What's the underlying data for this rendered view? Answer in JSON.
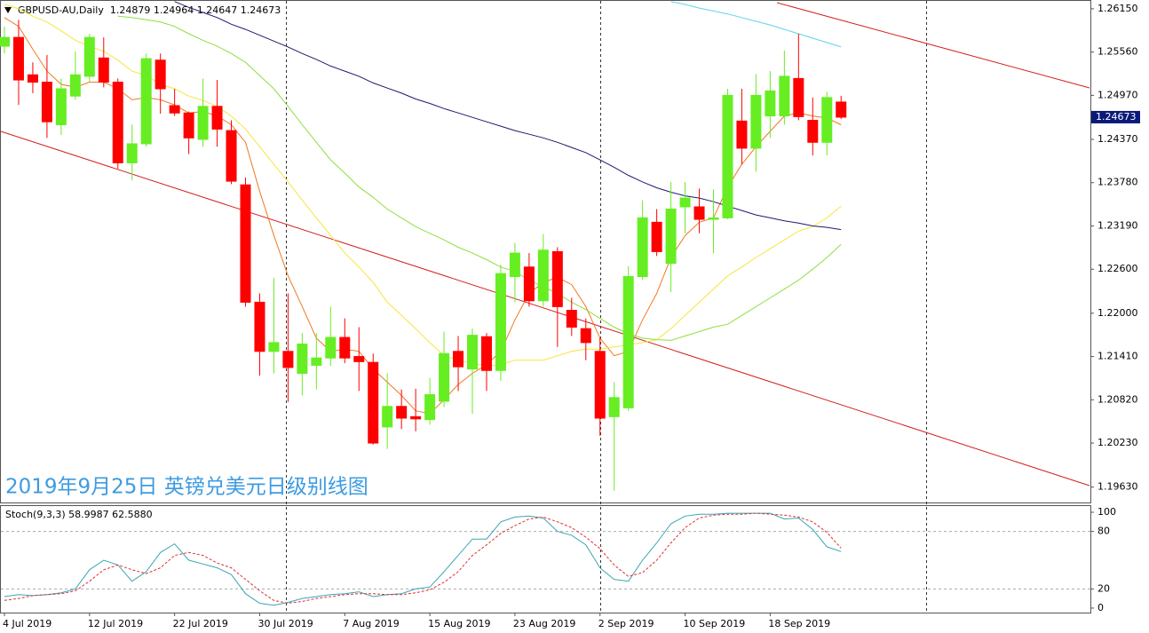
{
  "chart_data": [
    {
      "type": "candlestick",
      "title": "GBPUSD-AU,Daily  1.24879 1.24964 1.24647 1.24673",
      "annotation": "2019年9月25日 英镑兑美元日级别线图",
      "categories": [
        "4 Jul 2019",
        null,
        null,
        null,
        null,
        null,
        "12 Jul 2019",
        null,
        null,
        null,
        null,
        null,
        "22 Jul 2019",
        null,
        null,
        null,
        null,
        null,
        "30 Jul 2019",
        null,
        null,
        null,
        null,
        null,
        "7 Aug 2019",
        null,
        null,
        null,
        null,
        null,
        "15 Aug 2019",
        null,
        null,
        null,
        null,
        null,
        "23 Aug 2019",
        null,
        null,
        null,
        null,
        null,
        "2 Sep 2019",
        null,
        null,
        null,
        null,
        null,
        "10 Sep 2019",
        null,
        null,
        null,
        null,
        null,
        "18 Sep 2019",
        null,
        null,
        null,
        null,
        null
      ],
      "open": [
        1.2564,
        1.2576,
        1.2525,
        1.2515,
        1.2457,
        1.2496,
        1.2523,
        1.2548,
        1.2515,
        1.2405,
        1.2431,
        1.2545,
        1.2483,
        1.2473,
        1.2437,
        1.2482,
        1.2449,
        1.2375,
        1.2215,
        1.2148,
        1.2148,
        1.2118,
        1.2129,
        1.2139,
        1.2167,
        1.2141,
        1.2133,
        1.2045,
        1.2073,
        1.2059,
        1.2055,
        1.208,
        1.2148,
        1.2124,
        1.2168,
        1.2122,
        1.225,
        1.2263,
        1.2217,
        1.2284,
        1.2204,
        1.2179,
        1.2148,
        1.2059,
        1.2071,
        1.225,
        1.2324,
        1.2268,
        1.2345,
        1.2345,
        1.2328,
        1.233,
        1.2462,
        1.2425,
        1.2469,
        1.2469,
        1.252,
        1.2463,
        1.2433,
        1.24879
      ],
      "high": [
        1.2591,
        1.26,
        1.2542,
        1.2552,
        1.252,
        1.2557,
        1.2581,
        1.2576,
        1.252,
        1.2457,
        1.2554,
        1.2554,
        1.2506,
        1.2475,
        1.252,
        1.2518,
        1.2463,
        1.2385,
        1.2227,
        1.2248,
        1.2227,
        1.2173,
        1.2173,
        1.2209,
        1.2193,
        1.2181,
        1.2145,
        1.2118,
        1.2096,
        1.2097,
        1.2112,
        1.2175,
        1.2169,
        1.2179,
        1.2173,
        1.2266,
        1.2296,
        1.2282,
        1.2308,
        1.229,
        1.2221,
        1.2193,
        1.2167,
        1.2106,
        1.2264,
        1.2354,
        1.2342,
        1.2379,
        1.2379,
        1.237,
        1.2369,
        1.2506,
        1.2506,
        1.2526,
        1.253,
        1.2558,
        1.2581,
        1.2494,
        1.2502,
        1.24964
      ],
      "low": [
        1.2554,
        1.2484,
        1.25,
        1.2439,
        1.2443,
        1.2491,
        1.2515,
        1.2508,
        1.2397,
        1.2381,
        1.2427,
        1.2472,
        1.2469,
        1.2417,
        1.2427,
        1.2427,
        1.2376,
        1.2209,
        1.2115,
        1.2118,
        1.2079,
        1.2088,
        1.2096,
        1.2128,
        1.2132,
        1.2094,
        1.2021,
        1.2015,
        1.2042,
        1.2039,
        1.2048,
        1.2072,
        1.2094,
        1.2063,
        1.2094,
        1.2108,
        1.2215,
        1.2209,
        1.2209,
        1.2154,
        1.2169,
        1.2136,
        1.2033,
        1.1958,
        1.2067,
        1.2245,
        1.2278,
        1.2229,
        1.2309,
        1.2309,
        1.2282,
        1.2328,
        1.2403,
        1.2393,
        1.2439,
        1.2457,
        1.2463,
        1.2415,
        1.2415,
        1.24647
      ],
      "close": [
        1.2576,
        1.2518,
        1.2515,
        1.2461,
        1.2506,
        1.2525,
        1.2576,
        1.2515,
        1.2405,
        1.2431,
        1.2547,
        1.2506,
        1.2473,
        1.2439,
        1.2482,
        1.2451,
        1.238,
        1.2215,
        1.2148,
        1.216,
        1.2126,
        1.2158,
        1.2139,
        1.2167,
        1.2139,
        1.2134,
        1.2023,
        1.2073,
        1.2057,
        1.2056,
        1.2089,
        1.2145,
        1.2127,
        1.217,
        1.2122,
        1.2254,
        1.2282,
        1.2217,
        1.2286,
        1.2209,
        1.2181,
        1.216,
        1.2057,
        1.2085,
        1.225,
        1.233,
        1.2284,
        1.2342,
        1.2357,
        1.2328,
        1.233,
        1.2497,
        1.2425,
        1.2497,
        1.2503,
        1.2523,
        1.2468,
        1.2433,
        1.2494,
        1.24673
      ],
      "up_color": "#66ee22",
      "down_color": "#ff0000",
      "series": [
        {
          "color": "#f07820",
          "values": [
            1.2603,
            1.2591,
            1.256,
            1.253,
            1.2512,
            1.2508,
            1.2515,
            1.2515,
            1.2506,
            1.2491,
            1.2494,
            1.2491,
            1.2484,
            1.2473,
            1.2475,
            1.2469,
            1.2457,
            1.2433,
            1.2366,
            1.2306,
            1.2251,
            1.2209,
            1.2166,
            1.2148,
            1.2151,
            1.2148,
            1.2124,
            1.2106,
            1.2088,
            1.2067,
            1.2063,
            1.2082,
            1.2103,
            1.2118,
            1.213,
            1.2148,
            1.2191,
            1.2227,
            1.2242,
            1.2249,
            1.2239,
            1.2209,
            1.2166,
            1.2142,
            1.2148,
            1.2191,
            1.2227,
            1.2276,
            1.2306,
            1.2324,
            1.233,
            1.2372,
            1.2403,
            1.2427,
            1.2448,
            1.2469,
            1.2473,
            1.2469,
            1.2466,
            1.2457
          ]
        },
        {
          "color": "#f5e63c",
          "values": [
            1.2621,
            1.2615,
            1.2605,
            1.2597,
            1.2585,
            1.2572,
            1.2564,
            1.2557,
            1.2545,
            1.253,
            1.2524,
            1.2512,
            1.2506,
            1.2496,
            1.249,
            1.2482,
            1.2469,
            1.2451,
            1.2427,
            1.2403,
            1.2379,
            1.2354,
            1.233,
            1.2306,
            1.2282,
            1.2263,
            1.2242,
            1.2215,
            1.2197,
            1.2179,
            1.216,
            1.2142,
            1.2136,
            1.2132,
            1.2128,
            1.213,
            1.2136,
            1.2136,
            1.2136,
            1.2142,
            1.2148,
            1.2151,
            1.2151,
            1.2154,
            1.2157,
            1.216,
            1.2164,
            1.2179,
            1.2197,
            1.2215,
            1.2233,
            1.2251,
            1.2263,
            1.2276,
            1.2288,
            1.23,
            1.2312,
            1.2318,
            1.233,
            1.2346
          ]
        },
        {
          "color": "#8fdf3f",
          "values": [
            null,
            null,
            null,
            null,
            null,
            null,
            null,
            null,
            1.2605,
            1.2603,
            1.26,
            1.2597,
            1.2591,
            1.2581,
            1.2572,
            1.2564,
            1.2554,
            1.2542,
            1.2524,
            1.2506,
            1.2482,
            1.2457,
            1.2433,
            1.2409,
            1.2391,
            1.2372,
            1.2358,
            1.2342,
            1.233,
            1.2318,
            1.2309,
            1.23,
            1.229,
            1.2282,
            1.2273,
            1.2263,
            1.2257,
            1.2245,
            1.2236,
            1.2227,
            1.2215,
            1.2205,
            1.2193,
            1.2181,
            1.2172,
            1.2166,
            1.2164,
            1.2163,
            1.2169,
            1.2175,
            1.2181,
            1.2185,
            1.2197,
            1.2209,
            1.2221,
            1.2233,
            1.2245,
            1.226,
            1.2276,
            1.2294
          ]
        },
        {
          "color": "#1a1a6e",
          "values": [
            null,
            null,
            null,
            null,
            null,
            null,
            null,
            null,
            null,
            null,
            null,
            null,
            1.2625,
            1.2617,
            1.261,
            1.2603,
            1.2594,
            1.2587,
            1.2579,
            1.2571,
            1.2563,
            1.2554,
            1.2546,
            1.2537,
            1.253,
            1.2523,
            1.2514,
            1.2507,
            1.25,
            1.2492,
            1.2486,
            1.2479,
            1.2473,
            1.2467,
            1.2461,
            1.2455,
            1.2449,
            1.2444,
            1.2439,
            1.2433,
            1.2426,
            1.2419,
            1.2409,
            1.2399,
            1.2388,
            1.2379,
            1.2371,
            1.2365,
            1.236,
            1.2357,
            1.2352,
            1.2346,
            1.234,
            1.2334,
            1.233,
            1.2326,
            1.2323,
            1.2319,
            1.2317,
            1.2314
          ]
        },
        {
          "color": "#5fd3ea",
          "values": [
            null,
            null,
            null,
            null,
            null,
            null,
            null,
            null,
            null,
            null,
            null,
            null,
            null,
            null,
            null,
            null,
            null,
            null,
            null,
            null,
            null,
            null,
            null,
            null,
            null,
            null,
            null,
            null,
            null,
            null,
            null,
            null,
            null,
            null,
            null,
            null,
            null,
            null,
            null,
            null,
            null,
            null,
            null,
            null,
            null,
            null,
            null,
            1.2625,
            1.2621,
            1.2616,
            1.2612,
            1.2608,
            1.2603,
            1.2598,
            1.2593,
            1.2587,
            1.2581,
            1.2575,
            1.2569,
            1.2563
          ]
        }
      ],
      "ylim": [
        1.1942,
        1.2627
      ],
      "yticks": [
        {
          "value": 1.2615,
          "label": "1.26150"
        },
        {
          "value": 1.2556,
          "label": "1.25560"
        },
        {
          "value": 1.2497,
          "label": "1.24970"
        },
        {
          "value": 1.2437,
          "label": "1.24370"
        },
        {
          "value": 1.2378,
          "label": "1.23780"
        },
        {
          "value": 1.2319,
          "label": "1.23190"
        },
        {
          "value": 1.226,
          "label": "1.22600"
        },
        {
          "value": 1.22,
          "label": "1.22000"
        },
        {
          "value": 1.2141,
          "label": "1.21410"
        },
        {
          "value": 1.2082,
          "label": "1.20820"
        },
        {
          "value": 1.2023,
          "label": "1.20230"
        },
        {
          "value": 1.1963,
          "label": "1.19630"
        }
      ],
      "price_tag": {
        "value": 1.24673,
        "label": "1.24673"
      }
    },
    {
      "type": "line",
      "title": "Stoch(9,3,3) 58.9987 62.5880",
      "series": [
        {
          "color": "#3aa6b4",
          "values": [
            12,
            14,
            13,
            14,
            16,
            20,
            40,
            50,
            45,
            28,
            38,
            58,
            67,
            50,
            46,
            42,
            35,
            15,
            5,
            3,
            6,
            10,
            12,
            14,
            15,
            17,
            12,
            14,
            15,
            20,
            22,
            38,
            55,
            72,
            72,
            90,
            95,
            96,
            94,
            80,
            76,
            66,
            42,
            30,
            28,
            50,
            68,
            88,
            96,
            98,
            98,
            99,
            99,
            99,
            99,
            93,
            94,
            82,
            64,
            58.9987
          ]
        },
        {
          "color": "#e03030",
          "dashed": true,
          "values": [
            8,
            10,
            13,
            14,
            15,
            18,
            28,
            40,
            45,
            40,
            36,
            42,
            55,
            58,
            55,
            47,
            42,
            30,
            18,
            8,
            5,
            7,
            10,
            12,
            14,
            15,
            15,
            14,
            14,
            16,
            19,
            27,
            38,
            55,
            66,
            78,
            86,
            93,
            95,
            90,
            84,
            74,
            62,
            45,
            33,
            37,
            50,
            68,
            84,
            94,
            97,
            98,
            98,
            99,
            98,
            97,
            95,
            90,
            79,
            62.588
          ]
        }
      ],
      "ylim": [
        -4.7,
        106.5
      ],
      "yticks": [
        100,
        80,
        20,
        0
      ],
      "levels": [
        80,
        20
      ]
    }
  ]
}
